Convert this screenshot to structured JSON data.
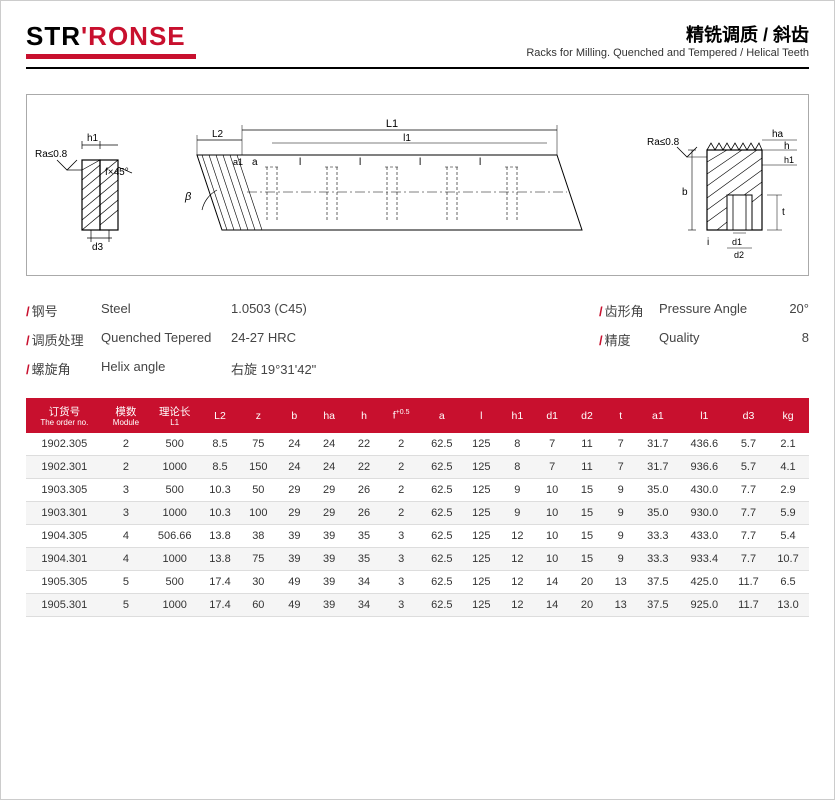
{
  "logo": {
    "part1": "STR",
    "part2": "'RONSE"
  },
  "title": {
    "cn": "精铣调质 / 斜齿",
    "en": "Racks for Milling. Quenched and Tempered / Helical Teeth"
  },
  "diagram_labels": {
    "ra": "Ra≤0.8",
    "h1": "h1",
    "fx45": "f×45°",
    "d3": "d3",
    "L2": "L2",
    "beta": "β",
    "a1": "a1",
    "a": "a",
    "l": "l",
    "l1": "l1",
    "L1": "L1",
    "ha": "ha",
    "h": "h",
    "b": "b",
    "i": "i",
    "d1": "d1",
    "d2": "d2",
    "t": "t"
  },
  "specs": [
    {
      "cn": "钢号",
      "en": "Steel",
      "val": "1.0503 (C45)",
      "cn2": "齿形角",
      "en2": "Pressure Angle",
      "val2": "20°"
    },
    {
      "cn": "调质处理",
      "en": "Quenched Tepered",
      "val": "24-27 HRC",
      "cn2": "精度",
      "en2": "Quality",
      "val2": "8"
    },
    {
      "cn": "螺旋角",
      "en": "Helix angle",
      "val": "右旋 19°31'42\"",
      "cn2": "",
      "en2": "",
      "val2": ""
    }
  ],
  "table": {
    "columns": [
      {
        "cn": "订货号",
        "en": "The order no."
      },
      {
        "cn": "模数",
        "en": "Module"
      },
      {
        "cn": "理论长",
        "en": "L1"
      },
      {
        "cn": "L2",
        "en": ""
      },
      {
        "cn": "z",
        "en": ""
      },
      {
        "cn": "b",
        "en": ""
      },
      {
        "cn": "ha",
        "en": ""
      },
      {
        "cn": "h",
        "en": ""
      },
      {
        "cn": "f",
        "en": "+0.5"
      },
      {
        "cn": "a",
        "en": ""
      },
      {
        "cn": "l",
        "en": ""
      },
      {
        "cn": "h1",
        "en": ""
      },
      {
        "cn": "d1",
        "en": ""
      },
      {
        "cn": "d2",
        "en": ""
      },
      {
        "cn": "t",
        "en": ""
      },
      {
        "cn": "a1",
        "en": ""
      },
      {
        "cn": "l1",
        "en": ""
      },
      {
        "cn": "d3",
        "en": ""
      },
      {
        "cn": "kg",
        "en": ""
      }
    ],
    "rows": [
      [
        "1902.305",
        "2",
        "500",
        "8.5",
        "75",
        "24",
        "24",
        "22",
        "2",
        "62.5",
        "125",
        "8",
        "7",
        "11",
        "7",
        "31.7",
        "436.6",
        "5.7",
        "2.1"
      ],
      [
        "1902.301",
        "2",
        "1000",
        "8.5",
        "150",
        "24",
        "24",
        "22",
        "2",
        "62.5",
        "125",
        "8",
        "7",
        "11",
        "7",
        "31.7",
        "936.6",
        "5.7",
        "4.1"
      ],
      [
        "1903.305",
        "3",
        "500",
        "10.3",
        "50",
        "29",
        "29",
        "26",
        "2",
        "62.5",
        "125",
        "9",
        "10",
        "15",
        "9",
        "35.0",
        "430.0",
        "7.7",
        "2.9"
      ],
      [
        "1903.301",
        "3",
        "1000",
        "10.3",
        "100",
        "29",
        "29",
        "26",
        "2",
        "62.5",
        "125",
        "9",
        "10",
        "15",
        "9",
        "35.0",
        "930.0",
        "7.7",
        "5.9"
      ],
      [
        "1904.305",
        "4",
        "506.66",
        "13.8",
        "38",
        "39",
        "39",
        "35",
        "3",
        "62.5",
        "125",
        "12",
        "10",
        "15",
        "9",
        "33.3",
        "433.0",
        "7.7",
        "5.4"
      ],
      [
        "1904.301",
        "4",
        "1000",
        "13.8",
        "75",
        "39",
        "39",
        "35",
        "3",
        "62.5",
        "125",
        "12",
        "10",
        "15",
        "9",
        "33.3",
        "933.4",
        "7.7",
        "10.7"
      ],
      [
        "1905.305",
        "5",
        "500",
        "17.4",
        "30",
        "49",
        "39",
        "34",
        "3",
        "62.5",
        "125",
        "12",
        "14",
        "20",
        "13",
        "37.5",
        "425.0",
        "11.7",
        "6.5"
      ],
      [
        "1905.301",
        "5",
        "1000",
        "17.4",
        "60",
        "49",
        "39",
        "34",
        "3",
        "62.5",
        "125",
        "12",
        "14",
        "20",
        "13",
        "37.5",
        "925.0",
        "11.7",
        "13.0"
      ]
    ],
    "col_widths": [
      "62",
      "36",
      "40",
      "30",
      "28",
      "26",
      "26",
      "26",
      "30",
      "32",
      "28",
      "26",
      "26",
      "26",
      "24",
      "32",
      "40",
      "28",
      "32"
    ]
  },
  "colors": {
    "brand_red": "#c8102e",
    "text": "#333333",
    "border": "#aaaaaa",
    "row_alt": "#f5f5f5"
  }
}
